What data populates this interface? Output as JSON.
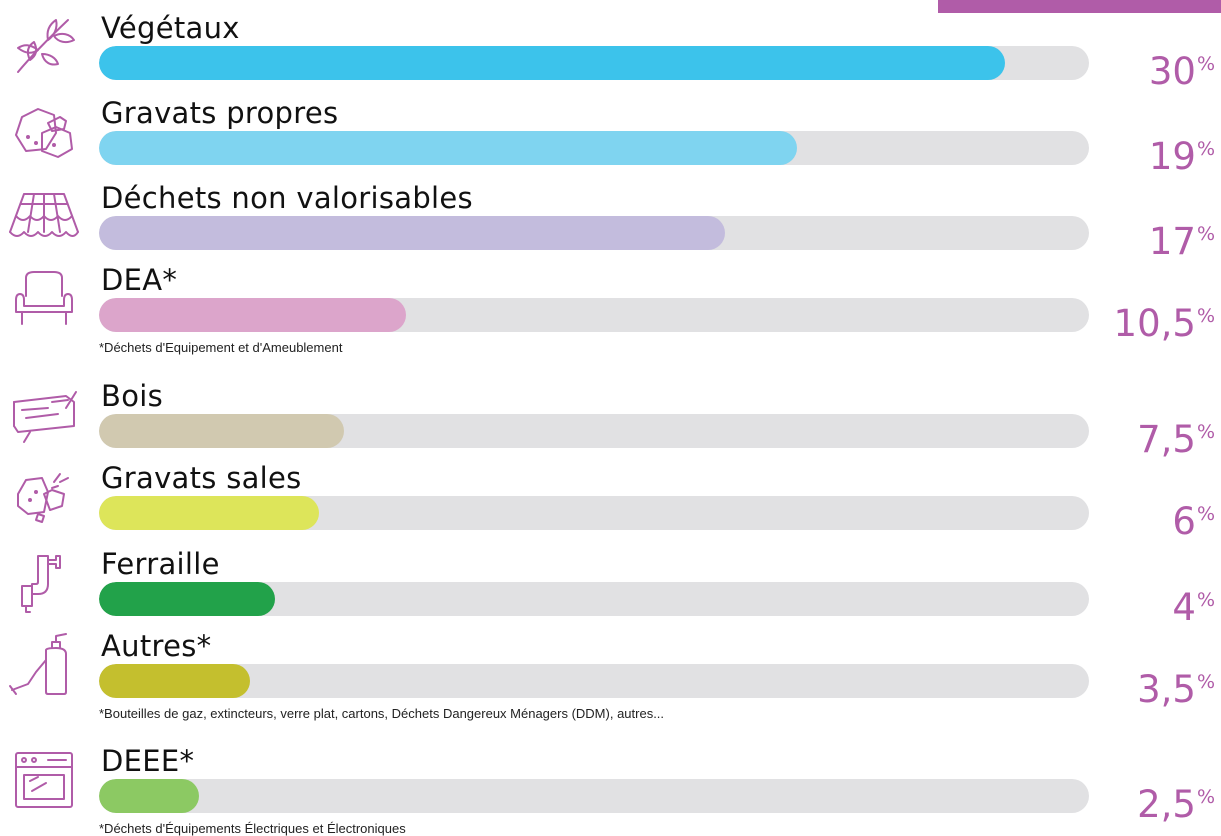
{
  "chart_data": {
    "type": "bar",
    "orientation": "horizontal",
    "categories": [
      "Végétaux",
      "Gravats propres",
      "Déchets non valorisables",
      "DEA*",
      "Bois",
      "Gravats sales",
      "Ferraille",
      "Autres*",
      "DEEE*"
    ],
    "values": [
      30,
      19,
      17,
      10.5,
      7.5,
      6,
      4,
      3.5,
      2.5
    ],
    "value_labels": [
      "30",
      "19",
      "17",
      "10,5",
      "7,5",
      "6",
      "4",
      "3,5",
      "2,5"
    ],
    "percent_symbol": "%",
    "colors": [
      "#3cc3eb",
      "#7fd4f0",
      "#c3bcdd",
      "#dca5cb",
      "#d1c9b0",
      "#dde55a",
      "#22a24a",
      "#c4bf2e",
      "#8cc963"
    ],
    "icons": [
      "branch-leaves-icon",
      "rocks-icon",
      "roof-tiles-icon",
      "armchair-icon",
      "wood-log-icon",
      "dirty-rubble-icon",
      "pipe-icon",
      "fire-extinguisher-icon",
      "oven-icon"
    ],
    "notes": {
      "3": "*Déchets d'Equipement et d'Ameublement",
      "7": "*Bouteilles de gaz, extincteurs, verre plat, cartons, Déchets Dangereux Ménagers (DDM), autres...",
      "8": "*Déchets d'Équipements Électriques et Électroniques"
    },
    "fill_fractions": [
      0.915,
      0.705,
      0.632,
      0.31,
      0.247,
      0.222,
      0.178,
      0.153,
      0.101
    ],
    "track_color": "#e1e1e3",
    "accent_color": "#b05ca8",
    "grid": false,
    "legend": "none"
  }
}
